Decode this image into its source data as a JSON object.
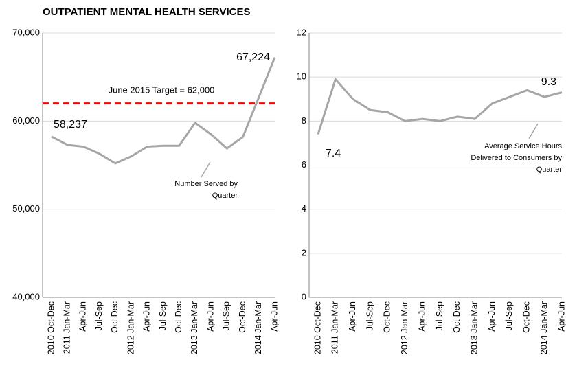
{
  "title": "OUTPATIENT MENTAL HEALTH SERVICES",
  "chart_data": [
    {
      "type": "line",
      "categories": [
        "2010 Oct-Dec",
        "2011 Jan-Mar",
        "Apr-Jun",
        "Jul-Sep",
        "Oct-Dec",
        "2012 Jan-Mar",
        "Apr-Jun",
        "Jul-Sep",
        "Oct-Dec",
        "2013 Jan-Mar",
        "Apr-Jun",
        "Jul-Sep",
        "Oct-Dec",
        "2014 Jan-Mar",
        "Apr-Jun"
      ],
      "series": [
        {
          "name": "Number Served by Quarter",
          "color": "#a6a6a6",
          "values": [
            58237,
            57300,
            57100,
            56300,
            55200,
            56000,
            57100,
            57200,
            57200,
            59800,
            58500,
            56900,
            58200,
            62700,
            67224
          ],
          "value_labels": [
            "58,237",
            null,
            null,
            null,
            null,
            null,
            null,
            null,
            null,
            null,
            null,
            null,
            null,
            null,
            "67,224"
          ]
        }
      ],
      "annotation": [
        "Number Served by",
        "Quarter"
      ],
      "target": {
        "value": 62000,
        "label": "June 2015 Target = 62,000",
        "color": "#ff0000"
      },
      "ylim": [
        40000,
        70000
      ],
      "yticks": [
        {
          "value": 40000,
          "label": "40,000"
        },
        {
          "value": 50000,
          "label": "50,000"
        },
        {
          "value": 60000,
          "label": "60,000"
        },
        {
          "value": 70000,
          "label": "70,000"
        }
      ],
      "grid": true
    },
    {
      "type": "line",
      "categories": [
        "2010 Oct-Dec",
        "2011 Jan-Mar",
        "Apr-Jun",
        "Jul-Sep",
        "Oct-Dec",
        "2012 Jan-Mar",
        "Apr-Jun",
        "Jul-Sep",
        "Oct-Dec",
        "2013 Jan-Mar",
        "Apr-Jun",
        "Jul-Sep",
        "Oct-Dec",
        "2014 Jan-Mar",
        "Apr-Jun"
      ],
      "series": [
        {
          "name": "Average Service Hours Delivered to Consumers by Quarter",
          "color": "#a6a6a6",
          "values": [
            7.4,
            9.9,
            9.0,
            8.5,
            8.4,
            8.0,
            8.1,
            8.0,
            8.2,
            8.1,
            8.8,
            9.1,
            9.4,
            9.1,
            9.3
          ],
          "value_labels": [
            "7.4",
            null,
            null,
            null,
            null,
            null,
            null,
            null,
            null,
            null,
            null,
            null,
            null,
            null,
            "9.3"
          ]
        }
      ],
      "annotation": [
        "Average Service Hours",
        "Delivered to Consumers by",
        "Quarter"
      ],
      "ylim": [
        0,
        12
      ],
      "yticks": [
        0,
        2,
        4,
        6,
        8,
        10,
        12
      ],
      "grid": true
    }
  ]
}
